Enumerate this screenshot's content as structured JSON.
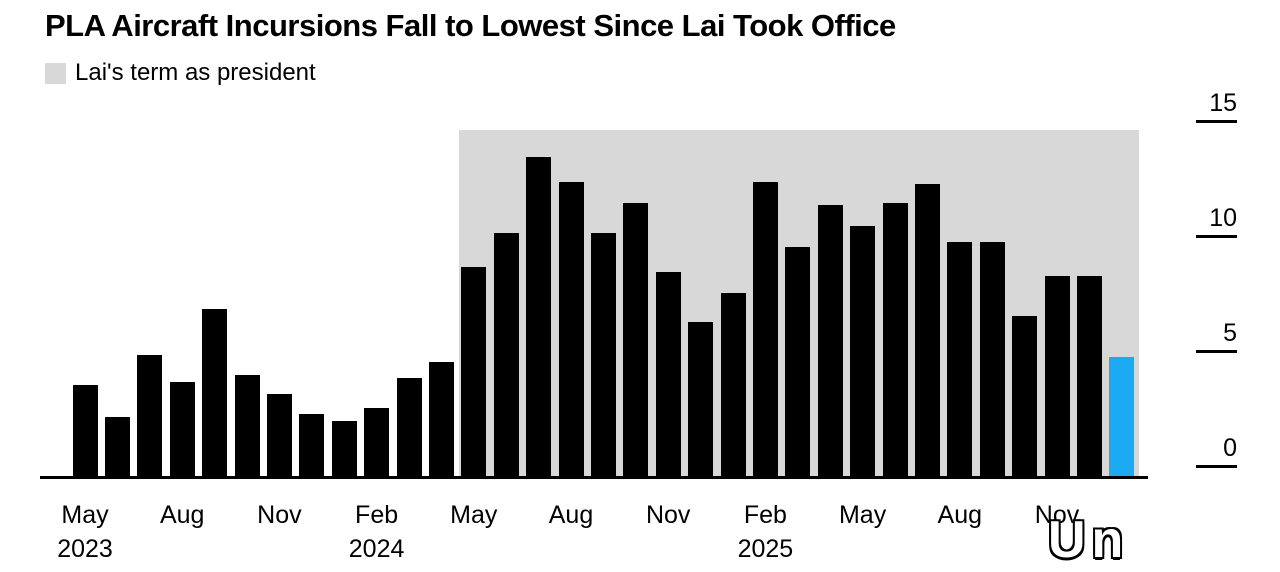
{
  "header": {
    "title": "PLA Aircraft Incursions Fall to Lowest Since Lai Took Office"
  },
  "legend": {
    "label": "Lai's term as president",
    "swatch_color": "#d8d8d8"
  },
  "watermark": "Un",
  "chart_data": {
    "type": "bar",
    "title": "PLA Aircraft Incursions Fall to Lowest Since Lai Took Office",
    "xlabel": "",
    "ylabel": "",
    "ylim": [
      0,
      15
    ],
    "yticks": [
      0,
      5,
      10,
      15
    ],
    "grid": false,
    "legend_position": "top-left",
    "categories": [
      "May 2023",
      "Jun 2023",
      "Jul 2023",
      "Aug 2023",
      "Sep 2023",
      "Oct 2023",
      "Nov 2023",
      "Dec 2023",
      "Jan 2024",
      "Feb 2024",
      "Mar 2024",
      "Apr 2024",
      "May 2024",
      "Jun 2024",
      "Jul 2024",
      "Aug 2024",
      "Sep 2024",
      "Oct 2024",
      "Nov 2024",
      "Dec 2024",
      "Jan 2025",
      "Feb 2025",
      "Mar 2025",
      "Apr 2025",
      "May 2025",
      "Jun 2025",
      "Jul 2025",
      "Aug 2025",
      "Sep 2025",
      "Oct 2025",
      "Nov 2025",
      "Dec 2025",
      "Jan 2026"
    ],
    "values": [
      3.5,
      2.1,
      4.8,
      3.6,
      6.8,
      3.9,
      3.1,
      2.2,
      1.9,
      2.5,
      3.8,
      4.5,
      8.6,
      10.1,
      13.4,
      12.3,
      10.1,
      11.4,
      8.4,
      6.2,
      7.5,
      12.3,
      9.5,
      11.3,
      10.4,
      11.4,
      12.2,
      9.7,
      9.7,
      6.5,
      8.2,
      8.2,
      4.7
    ],
    "bar_color": "#000000",
    "highlight_index": 32,
    "highlight_color": "#1caaf2",
    "shaded_region": {
      "label": "Lai's term as president",
      "start": "May 2024",
      "end": "Jan 2026",
      "color": "#d8d8d8"
    },
    "xticks": [
      {
        "index": 0,
        "label": "May",
        "year": "2023"
      },
      {
        "index": 3,
        "label": "Aug"
      },
      {
        "index": 6,
        "label": "Nov"
      },
      {
        "index": 9,
        "label": "Feb",
        "year": "2024"
      },
      {
        "index": 12,
        "label": "May"
      },
      {
        "index": 15,
        "label": "Aug"
      },
      {
        "index": 18,
        "label": "Nov"
      },
      {
        "index": 21,
        "label": "Feb",
        "year": "2025"
      },
      {
        "index": 24,
        "label": "May"
      },
      {
        "index": 27,
        "label": "Aug"
      },
      {
        "index": 30,
        "label": "Nov"
      }
    ]
  }
}
